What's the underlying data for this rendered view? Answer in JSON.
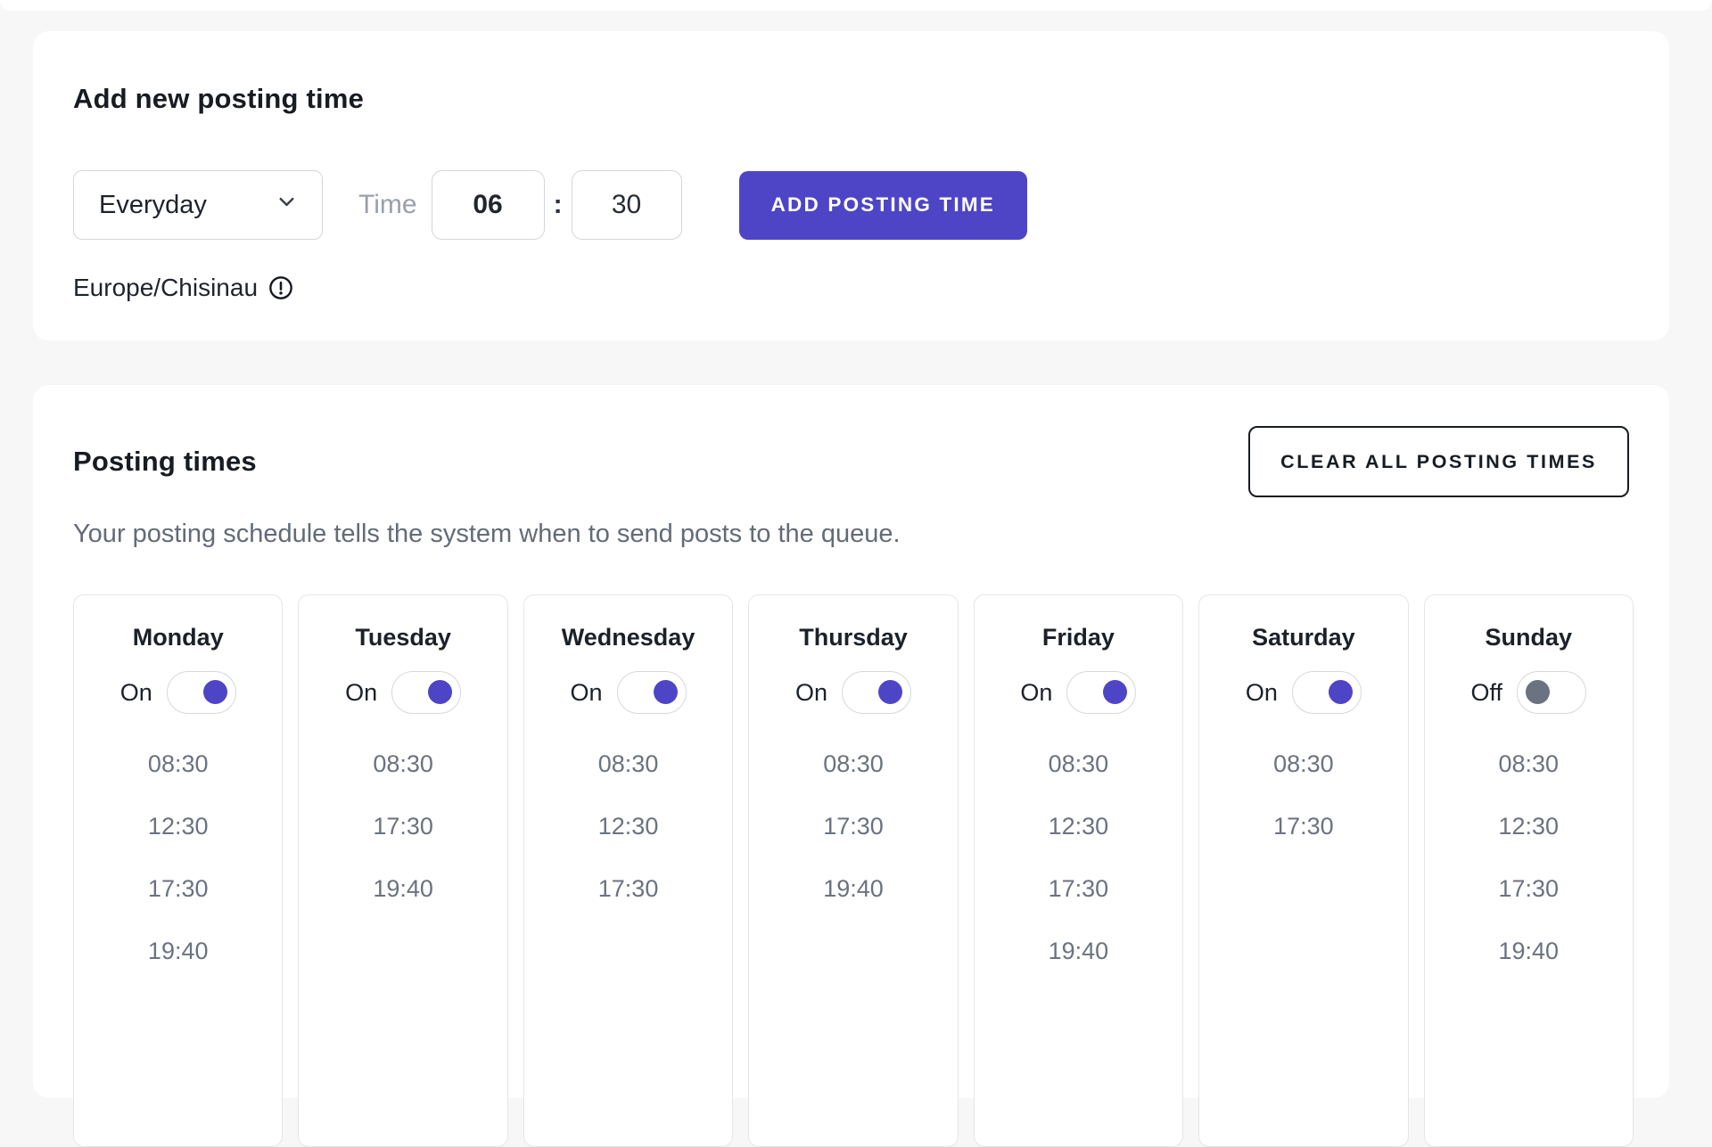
{
  "colors": {
    "accent": "#4e45c6",
    "toggle_off_knob": "#6b7280",
    "page_background": "#f7f7f8"
  },
  "add_posting_time": {
    "title": "Add new posting time",
    "frequency_select": {
      "value": "Everyday"
    },
    "time_label": "Time",
    "hour_value": "06",
    "time_separator": ":",
    "minute_value": "30",
    "submit_label": "ADD POSTING TIME",
    "timezone": "Europe/Chisinau",
    "timezone_info_icon": "alert-circle-icon"
  },
  "posting_times": {
    "title": "Posting times",
    "clear_all_label": "CLEAR ALL POSTING TIMES",
    "description": "Your posting schedule tells the system when to send posts to the queue.",
    "toggle_on_label": "On",
    "toggle_off_label": "Off",
    "days": [
      {
        "name": "Monday",
        "enabled": true,
        "times": [
          "08:30",
          "12:30",
          "17:30",
          "19:40"
        ]
      },
      {
        "name": "Tuesday",
        "enabled": true,
        "times": [
          "08:30",
          "17:30",
          "19:40"
        ]
      },
      {
        "name": "Wednesday",
        "enabled": true,
        "times": [
          "08:30",
          "12:30",
          "17:30"
        ]
      },
      {
        "name": "Thursday",
        "enabled": true,
        "times": [
          "08:30",
          "17:30",
          "19:40"
        ]
      },
      {
        "name": "Friday",
        "enabled": true,
        "times": [
          "08:30",
          "12:30",
          "17:30",
          "19:40"
        ]
      },
      {
        "name": "Saturday",
        "enabled": true,
        "times": [
          "08:30",
          "17:30"
        ]
      },
      {
        "name": "Sunday",
        "enabled": false,
        "times": [
          "08:30",
          "12:30",
          "17:30",
          "19:40"
        ]
      }
    ]
  }
}
